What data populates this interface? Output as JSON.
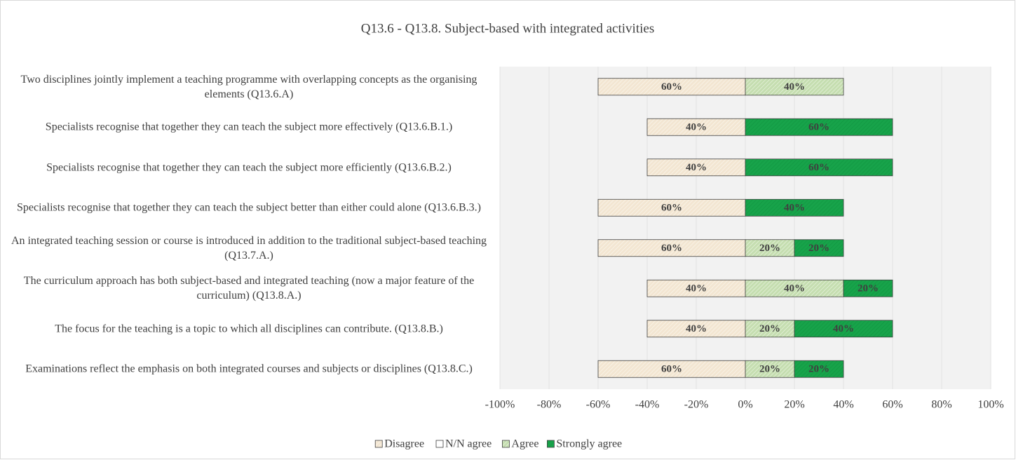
{
  "chart_data": {
    "type": "diverging_bar",
    "title": "Q13.6 - Q13.8. Subject-based with integrated activities",
    "categories": [
      "Two disciplines jointly implement a teaching programme with overlapping concepts as the organising elements (Q13.6.A)",
      "Specialists recognise that together they can teach the subject more effectively (Q13.6.B.1.)",
      "Specialists recognise that together they can teach the subject more efficiently (Q13.6.B.2.)",
      "Specialists recognise that together they can teach the subject better than either could alone (Q13.6.B.3.)",
      "An integrated teaching session or course is introduced in addition to the traditional subject-based teaching (Q13.7.A.)",
      "The curriculum approach has both subject-based and integrated teaching (now a major feature of the curriculum) (Q13.8.A.)",
      "The focus for the teaching is a topic to which all disciplines can contribute. (Q13.8.B.)",
      "Examinations reflect the emphasis on both integrated courses and subjects or disciplines (Q13.8.C.)"
    ],
    "series": [
      {
        "name": "Disagree",
        "color": "#f3e6d2",
        "values": [
          -60,
          -40,
          -40,
          -60,
          -60,
          -40,
          -40,
          -60
        ],
        "value_labels": [
          "60%",
          "40%",
          "40%",
          "60%",
          "60%",
          "40%",
          "40%",
          "60%"
        ]
      },
      {
        "name": "N/N agree",
        "color": "#ffffff",
        "values": [
          0,
          0,
          0,
          0,
          0,
          0,
          0,
          0
        ]
      },
      {
        "name": "Agree",
        "color": "#c5deb0",
        "values": [
          40,
          0,
          0,
          0,
          20,
          40,
          20,
          20
        ],
        "value_labels": [
          "40%",
          null,
          null,
          null,
          "20%",
          "40%",
          "20%",
          "20%"
        ]
      },
      {
        "name": "Strongly agree",
        "color": "#17a34a",
        "values": [
          0,
          60,
          60,
          40,
          20,
          20,
          40,
          20
        ],
        "value_labels": [
          null,
          "60%",
          "60%",
          "40%",
          "20%",
          "20%",
          "40%",
          "20%"
        ]
      }
    ],
    "xlim": [
      -100,
      100
    ],
    "xticks": [
      {
        "value": -100,
        "label": "-100%"
      },
      {
        "value": -80,
        "label": "-80%"
      },
      {
        "value": -60,
        "label": "-60%"
      },
      {
        "value": -40,
        "label": "-40%"
      },
      {
        "value": -20,
        "label": "-20%"
      },
      {
        "value": 0,
        "label": "0%"
      },
      {
        "value": 20,
        "label": "20%"
      },
      {
        "value": 40,
        "label": "40%"
      },
      {
        "value": 60,
        "label": "60%"
      },
      {
        "value": 80,
        "label": "80%"
      },
      {
        "value": 100,
        "label": "100%"
      }
    ],
    "grid": true,
    "legend": "bottom"
  }
}
